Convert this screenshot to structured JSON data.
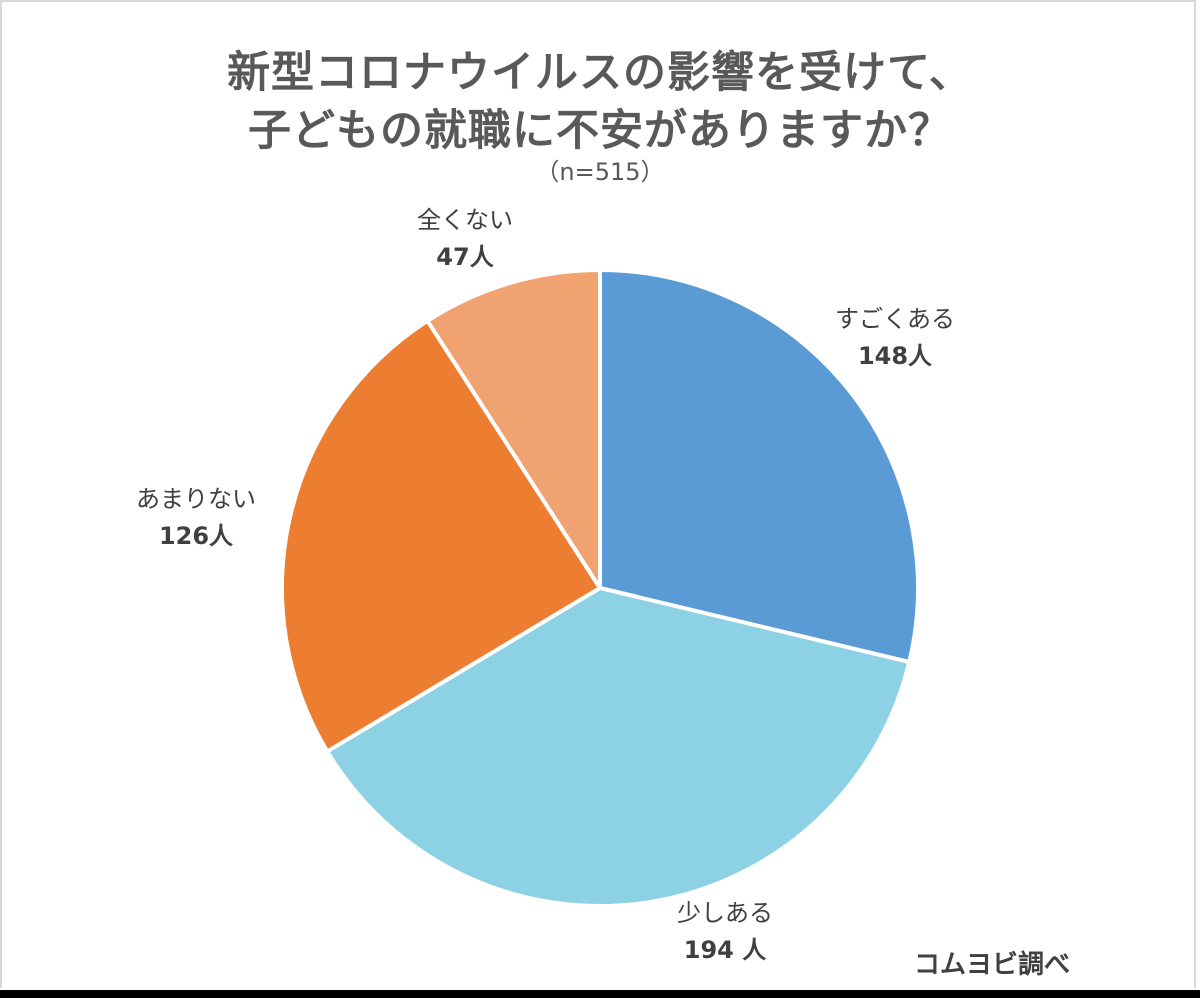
{
  "chart_data": {
    "type": "pie",
    "title": [
      "新型コロナウイルスの影響を受けて、",
      "子どもの就職に不安がありますか？"
    ],
    "subtitle": "（n=515）",
    "total": 515,
    "unit": "人",
    "slices": [
      {
        "label": "すごくある",
        "value": 148,
        "display": "148人",
        "color": "#5b9bd5"
      },
      {
        "label": "少しある",
        "value": 194,
        "display": "194 人",
        "color": "#8dd1e4"
      },
      {
        "label": "あまりない",
        "value": 126,
        "display": "126人",
        "color": "#ed7d31"
      },
      {
        "label": "全くない",
        "value": 47,
        "display": "47人",
        "color": "#f0a370"
      }
    ],
    "start_angle_deg": 0,
    "direction": "clockwise"
  },
  "credit": "コムヨビ調べ"
}
